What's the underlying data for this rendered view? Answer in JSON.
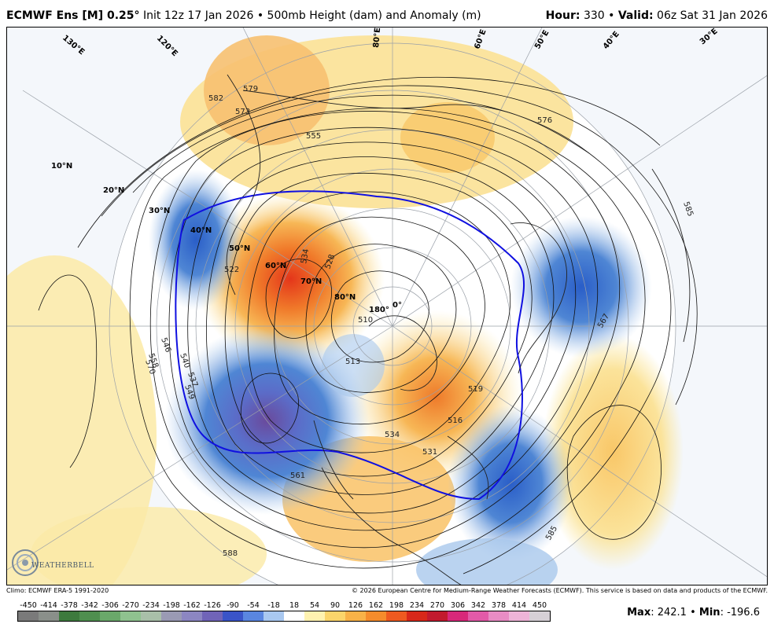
{
  "header": {
    "model": "ECMWF Ens [M] 0.25",
    "degree_symbol": "°",
    "init": "Init 12z 17 Jan 2026",
    "bullet": "•",
    "product": "500mb Height (dam) and Anomaly (m)",
    "hour_label": "Hour",
    "hour_value": "330",
    "valid_label": "Valid",
    "valid_value": "06z Sat 31 Jan 2026"
  },
  "map": {
    "latitude_labels": [
      "10°N",
      "20°N",
      "30°N",
      "40°N",
      "50°N",
      "60°N",
      "70°N",
      "80°N"
    ],
    "longitude_labels": [
      "180°",
      "0°",
      "60°E",
      "50°E",
      "40°E",
      "30°E",
      "120°E",
      "130°E",
      "80°E"
    ],
    "contour_labels": [
      "582",
      "579",
      "573",
      "576",
      "555",
      "522",
      "534",
      "528",
      "510",
      "513",
      "519",
      "516",
      "537",
      "531",
      "534",
      "540",
      "546",
      "549",
      "558",
      "570",
      "561",
      "588",
      "585",
      "567",
      "585"
    ],
    "colors": {
      "height_contour": "#000000",
      "highlight_contour": "#1010e0",
      "ocean": "#ffffff",
      "warm_light": "#fbe8a0",
      "warm_mid": "#f7b756",
      "warm_strong": "#e8471e",
      "cold_light": "#a9c8ec",
      "cold_mid": "#4f86d4",
      "cold_strong": "#5b3a9c"
    }
  },
  "footer": {
    "climo": "Climo: ECMWF ERA-5 1991-2020",
    "copyright": "© 2026 European Centre for Medium-Range Weather Forecasts (ECMWF). This service is based on data and products of the ECMWF.",
    "max_label": "Max",
    "max_value": "242.1",
    "min_label": "Min",
    "min_value": "-196.6",
    "logo_text": "WEATHERBELL"
  },
  "color_scale": {
    "labels": [
      "-450",
      "-414",
      "-378",
      "-342",
      "-306",
      "-270",
      "-234",
      "-198",
      "-162",
      "-126",
      "-90",
      "-54",
      "-18",
      "18",
      "54",
      "90",
      "126",
      "162",
      "198",
      "234",
      "270",
      "306",
      "342",
      "378",
      "414",
      "450"
    ],
    "colors": [
      "#7a7a7a",
      "#8a8f8a",
      "#3d7a3d",
      "#4f8f4f",
      "#6aa86a",
      "#8fc28f",
      "#a9bfa9",
      "#9a9ab4",
      "#8c86c2",
      "#7064b8",
      "#3a54c8",
      "#5a86e0",
      "#a9c8f0",
      "#ffffff",
      "#fff2b0",
      "#fbd56b",
      "#f8b248",
      "#f58c2c",
      "#ee5a20",
      "#d8281a",
      "#c21a2e",
      "#d8287a",
      "#e25aa8",
      "#e88cc4",
      "#eeb4d8",
      "#d6d0d6"
    ]
  }
}
